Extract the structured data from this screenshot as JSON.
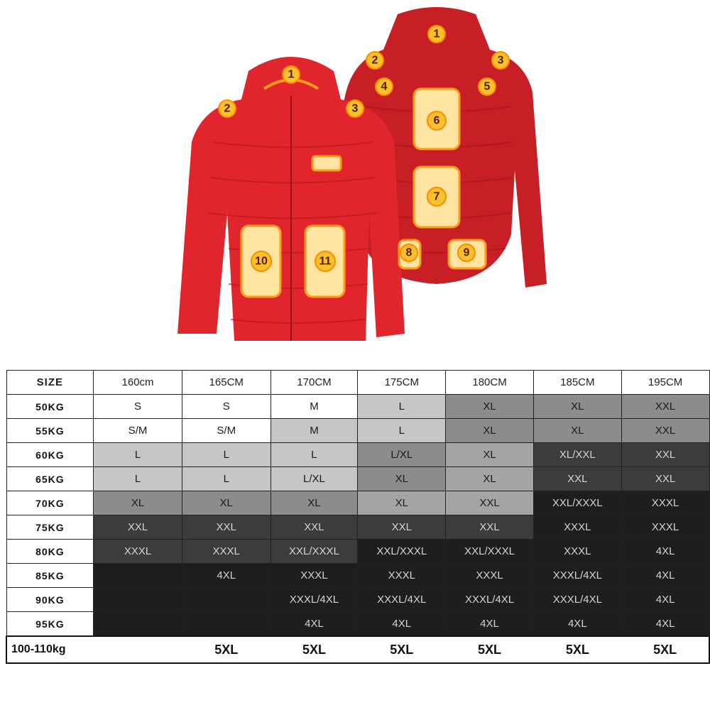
{
  "product": {
    "front_labels": [
      "1",
      "2",
      "3",
      "10",
      "11"
    ],
    "back_labels": [
      "1",
      "2",
      "3",
      "4",
      "5",
      "6",
      "7",
      "8",
      "9"
    ],
    "jacket_color": "#d8262b",
    "heating_pad_color": "#ff9b1a"
  },
  "size_chart": {
    "corner": "SIZE",
    "heights": [
      "160cm",
      "165CM",
      "170CM",
      "175CM",
      "180CM",
      "185CM",
      "195CM"
    ],
    "rows": [
      {
        "weight": "50KG",
        "sizes": [
          "S",
          "S",
          "M",
          "L",
          "XL",
          "XL",
          "XXL"
        ],
        "shades": [
          "w",
          "w",
          "w",
          "l",
          "m",
          "m",
          "m"
        ]
      },
      {
        "weight": "55KG",
        "sizes": [
          "S/M",
          "S/M",
          "M",
          "L",
          "XL",
          "XL",
          "XXL"
        ],
        "shades": [
          "w",
          "w",
          "l",
          "l",
          "m",
          "m",
          "m"
        ]
      },
      {
        "weight": "60KG",
        "sizes": [
          "L",
          "L",
          "L",
          "L/XL",
          "XL",
          "XL/XXL",
          "XXL"
        ],
        "shades": [
          "l",
          "l",
          "l",
          "m",
          "g",
          "d",
          "d"
        ]
      },
      {
        "weight": "65KG",
        "sizes": [
          "L",
          "L",
          "L/XL",
          "XL",
          "XL",
          "XXL",
          "XXL"
        ],
        "shades": [
          "l",
          "l",
          "l",
          "m",
          "g",
          "d",
          "d"
        ]
      },
      {
        "weight": "70KG",
        "sizes": [
          "XL",
          "XL",
          "XL",
          "XL",
          "XXL",
          "XXL/XXXL",
          "XXXL"
        ],
        "shades": [
          "m",
          "m",
          "m",
          "g",
          "g",
          "b",
          "b"
        ]
      },
      {
        "weight": "75KG",
        "sizes": [
          "XXL",
          "XXL",
          "XXL",
          "XXL",
          "XXL",
          "XXXL",
          "XXXL"
        ],
        "shades": [
          "d",
          "d",
          "d",
          "d",
          "d",
          "b",
          "b"
        ]
      },
      {
        "weight": "80KG",
        "sizes": [
          "XXXL",
          "XXXL",
          "XXL/XXXL",
          "XXL/XXXL",
          "XXL/XXXL",
          "XXXL",
          "4XL"
        ],
        "shades": [
          "d",
          "d",
          "d",
          "b",
          "b",
          "b",
          "b"
        ]
      },
      {
        "weight": "85KG",
        "sizes": [
          "",
          "4XL",
          "XXXL",
          "XXXL",
          "XXXL",
          "XXXL/4XL",
          "4XL"
        ],
        "shades": [
          "b",
          "b",
          "b",
          "b",
          "b",
          "b",
          "b"
        ]
      },
      {
        "weight": "90KG",
        "sizes": [
          "",
          "",
          "XXXL/4XL",
          "XXXL/4XL",
          "XXXL/4XL",
          "XXXL/4XL",
          "4XL"
        ],
        "shades": [
          "b",
          "b",
          "b",
          "b",
          "b",
          "b",
          "b"
        ]
      },
      {
        "weight": "95KG",
        "sizes": [
          "",
          "",
          "4XL",
          "4XL",
          "4XL",
          "4XL",
          "4XL"
        ],
        "shades": [
          "b",
          "b",
          "b",
          "b",
          "b",
          "b",
          "b"
        ]
      }
    ],
    "last_row": {
      "weight": "100-110kg",
      "sizes": [
        "",
        "5XL",
        "5XL",
        "5XL",
        "5XL",
        "5XL",
        "5XL"
      ]
    },
    "shade_colors": {
      "w": "#ffffff",
      "l": "#c6c6c6",
      "g": "#a4a4a4",
      "m": "#8c8c8c",
      "d": "#3c3c3c",
      "b": "#1e1e1e"
    }
  }
}
